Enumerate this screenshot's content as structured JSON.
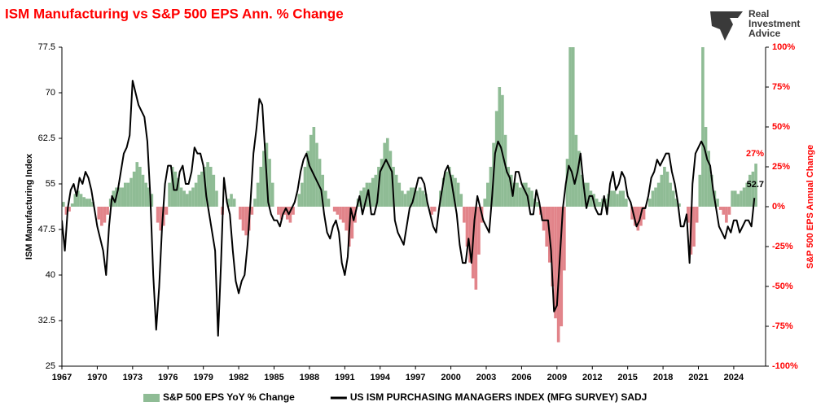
{
  "chart_data": {
    "type": "combo",
    "title": "ISM Manufacturing vs S&P 500 EPS Ann. % Change",
    "logo": [
      "Real",
      "Investment",
      "Advice"
    ],
    "ylabel": "ISM Manufacturing Index",
    "y2label": "S&P 500 EPS Annual Change",
    "xlim": [
      1967,
      2026.7
    ],
    "xticks": [
      1967,
      1970,
      1973,
      1976,
      1979,
      1982,
      1985,
      1988,
      1991,
      1994,
      1997,
      2000,
      2003,
      2006,
      2009,
      2012,
      2015,
      2018,
      2021,
      2024
    ],
    "ylim": [
      25,
      77.5
    ],
    "yticks": [
      25,
      32.5,
      40,
      47.5,
      55,
      62.5,
      70,
      77.5
    ],
    "y2lim": [
      -100,
      100
    ],
    "y2ticks": [
      {
        "value": -100,
        "label": "-100%"
      },
      {
        "value": -75,
        "label": "-75%"
      },
      {
        "value": -50,
        "label": "-50%"
      },
      {
        "value": -25,
        "label": "-25%"
      },
      {
        "value": 0,
        "label": "0%"
      },
      {
        "value": 25,
        "label": "25%"
      },
      {
        "value": 50,
        "label": "50%"
      },
      {
        "value": 75,
        "label": "75%"
      },
      {
        "value": 100,
        "label": "100%"
      }
    ],
    "x": [
      1967,
      1967.25,
      1967.5,
      1967.75,
      1968,
      1968.25,
      1968.5,
      1968.75,
      1969,
      1969.25,
      1969.5,
      1969.75,
      1970,
      1970.25,
      1970.5,
      1970.75,
      1971,
      1971.25,
      1971.5,
      1971.75,
      1972,
      1972.25,
      1972.5,
      1972.75,
      1973,
      1973.25,
      1973.5,
      1973.75,
      1974,
      1974.25,
      1974.5,
      1974.75,
      1975,
      1975.25,
      1975.5,
      1975.75,
      1976,
      1976.25,
      1976.5,
      1976.75,
      1977,
      1977.25,
      1977.5,
      1977.75,
      1978,
      1978.25,
      1978.5,
      1978.75,
      1979,
      1979.25,
      1979.5,
      1979.75,
      1980,
      1980.25,
      1980.5,
      1980.75,
      1981,
      1981.25,
      1981.5,
      1981.75,
      1982,
      1982.25,
      1982.5,
      1982.75,
      1983,
      1983.25,
      1983.5,
      1983.75,
      1984,
      1984.25,
      1984.5,
      1984.75,
      1985,
      1985.25,
      1985.5,
      1985.75,
      1986,
      1986.25,
      1986.5,
      1986.75,
      1987,
      1987.25,
      1987.5,
      1987.75,
      1988,
      1988.25,
      1988.5,
      1988.75,
      1989,
      1989.25,
      1989.5,
      1989.75,
      1990,
      1990.25,
      1990.5,
      1990.75,
      1991,
      1991.25,
      1991.5,
      1991.75,
      1992,
      1992.25,
      1992.5,
      1992.75,
      1993,
      1993.25,
      1993.5,
      1993.75,
      1994,
      1994.25,
      1994.5,
      1994.75,
      1995,
      1995.25,
      1995.5,
      1995.75,
      1996,
      1996.25,
      1996.5,
      1996.75,
      1997,
      1997.25,
      1997.5,
      1997.75,
      1998,
      1998.25,
      1998.5,
      1998.75,
      1999,
      1999.25,
      1999.5,
      1999.75,
      2000,
      2000.25,
      2000.5,
      2000.75,
      2001,
      2001.25,
      2001.5,
      2001.75,
      2002,
      2002.25,
      2002.5,
      2002.75,
      2003,
      2003.25,
      2003.5,
      2003.75,
      2004,
      2004.25,
      2004.5,
      2004.75,
      2005,
      2005.25,
      2005.5,
      2005.75,
      2006,
      2006.25,
      2006.5,
      2006.75,
      2007,
      2007.25,
      2007.5,
      2007.75,
      2008,
      2008.25,
      2008.5,
      2008.75,
      2009,
      2009.25,
      2009.5,
      2009.75,
      2010,
      2010.25,
      2010.5,
      2010.75,
      2011,
      2011.25,
      2011.5,
      2011.75,
      2012,
      2012.25,
      2012.5,
      2012.75,
      2013,
      2013.25,
      2013.5,
      2013.75,
      2014,
      2014.25,
      2014.5,
      2014.75,
      2015,
      2015.25,
      2015.5,
      2015.75,
      2016,
      2016.25,
      2016.5,
      2016.75,
      2017,
      2017.25,
      2017.5,
      2017.75,
      2018,
      2018.25,
      2018.5,
      2018.75,
      2019,
      2019.25,
      2019.5,
      2019.75,
      2020,
      2020.25,
      2020.5,
      2020.75,
      2021,
      2021.25,
      2021.5,
      2021.75,
      2022,
      2022.25,
      2022.5,
      2022.75,
      2023,
      2023.25,
      2023.5,
      2023.75,
      2024,
      2024.25,
      2024.5,
      2024.75,
      2025,
      2025.25,
      2025.5,
      2025.75
    ],
    "series": [
      {
        "name": "S&P 500 EPS YoY % Change",
        "type": "bar",
        "axis": "y2",
        "color": "#8fbc95",
        "negative_color": "#e2848a",
        "last_label": "27%",
        "values": [
          3,
          -5,
          -3,
          2,
          8,
          10,
          8,
          6,
          5,
          5,
          3,
          0,
          -8,
          -12,
          -10,
          -5,
          5,
          10,
          12,
          12,
          12,
          15,
          15,
          18,
          22,
          28,
          25,
          20,
          15,
          12,
          8,
          0,
          -10,
          -15,
          -12,
          -5,
          15,
          25,
          22,
          18,
          12,
          10,
          8,
          10,
          12,
          15,
          20,
          22,
          25,
          28,
          25,
          20,
          10,
          0,
          -5,
          0,
          5,
          8,
          5,
          0,
          -8,
          -15,
          -18,
          -15,
          -5,
          5,
          15,
          25,
          35,
          40,
          30,
          15,
          0,
          -5,
          -8,
          -5,
          -8,
          -10,
          -5,
          0,
          8,
          15,
          25,
          35,
          45,
          50,
          40,
          30,
          20,
          10,
          5,
          0,
          -3,
          -5,
          -8,
          -10,
          -15,
          -25,
          -20,
          -10,
          5,
          10,
          12,
          15,
          15,
          18,
          20,
          25,
          30,
          40,
          43,
          35,
          25,
          20,
          15,
          10,
          8,
          10,
          12,
          12,
          10,
          12,
          10,
          8,
          0,
          -5,
          -3,
          0,
          10,
          18,
          22,
          25,
          20,
          18,
          15,
          8,
          -10,
          -25,
          -35,
          -45,
          -52,
          -30,
          -10,
          5,
          15,
          25,
          40,
          60,
          75,
          70,
          45,
          25,
          20,
          15,
          15,
          12,
          15,
          15,
          12,
          10,
          5,
          3,
          -5,
          -15,
          -25,
          -35,
          -50,
          -70,
          -85,
          -75,
          -40,
          30,
          100,
          100,
          45,
          35,
          20,
          15,
          15,
          10,
          8,
          5,
          3,
          5,
          5,
          8,
          10,
          10,
          8,
          10,
          10,
          5,
          0,
          -8,
          -12,
          -15,
          -12,
          -8,
          0,
          5,
          10,
          12,
          15,
          20,
          25,
          22,
          15,
          10,
          5,
          2,
          0,
          0,
          -10,
          -30,
          -25,
          -10,
          20,
          100,
          50,
          35,
          20,
          10,
          5,
          -2,
          -5,
          -10,
          -5,
          10,
          10,
          8,
          10,
          12,
          15,
          20,
          22,
          27
        ]
      },
      {
        "name": "US ISM PURCHASING MANAGERS INDEX (MFG SURVEY) SADJ",
        "type": "line",
        "axis": "y",
        "color": "#000000",
        "values": [
          49,
          44,
          51,
          54,
          55,
          53,
          56,
          55,
          57,
          56,
          54,
          51,
          48,
          46,
          44,
          40,
          48,
          53,
          52,
          54,
          57,
          60,
          61,
          63,
          72,
          70,
          68,
          67,
          66,
          62,
          53,
          40,
          31,
          38,
          48,
          55,
          58,
          58,
          54,
          54,
          57,
          58,
          55,
          55,
          57,
          61,
          60,
          60,
          58,
          53,
          50,
          47,
          44,
          30,
          42,
          56,
          52,
          50,
          44,
          39,
          37,
          39,
          40,
          45,
          52,
          60,
          64,
          69,
          68,
          60,
          52,
          50,
          49,
          49,
          48,
          50,
          51,
          50,
          51,
          52,
          54,
          57,
          59,
          60,
          58,
          57,
          56,
          55,
          54,
          50,
          47,
          46,
          48,
          49,
          47,
          42,
          40,
          43,
          51,
          49,
          51,
          53,
          50,
          52,
          54,
          50,
          50,
          52,
          57,
          58,
          59,
          58,
          57,
          49,
          47,
          46,
          45,
          48,
          51,
          52,
          54,
          56,
          56,
          55,
          52,
          50,
          48,
          47,
          51,
          54,
          57,
          58,
          56,
          53,
          50,
          45,
          42,
          42,
          46,
          42,
          49,
          53,
          51,
          49,
          48,
          47,
          53,
          60,
          62,
          61,
          59,
          57,
          56,
          53,
          57,
          57,
          55,
          54,
          53,
          50,
          50,
          54,
          52,
          49,
          49,
          49,
          44,
          34,
          35,
          43,
          51,
          55,
          58,
          57,
          55,
          57,
          60,
          55,
          51,
          53,
          53,
          51,
          50,
          50,
          53,
          50,
          55,
          57,
          54,
          55,
          57,
          56,
          53,
          52,
          50,
          48,
          49,
          51,
          51,
          53,
          56,
          57,
          59,
          58,
          59,
          60,
          60,
          57,
          55,
          52,
          48,
          48,
          50,
          42,
          55,
          60,
          61,
          62,
          61,
          59,
          58,
          54,
          51,
          48,
          47,
          46,
          48,
          47,
          49,
          49,
          47,
          48,
          49,
          49,
          48,
          52.7
        ]
      }
    ]
  }
}
